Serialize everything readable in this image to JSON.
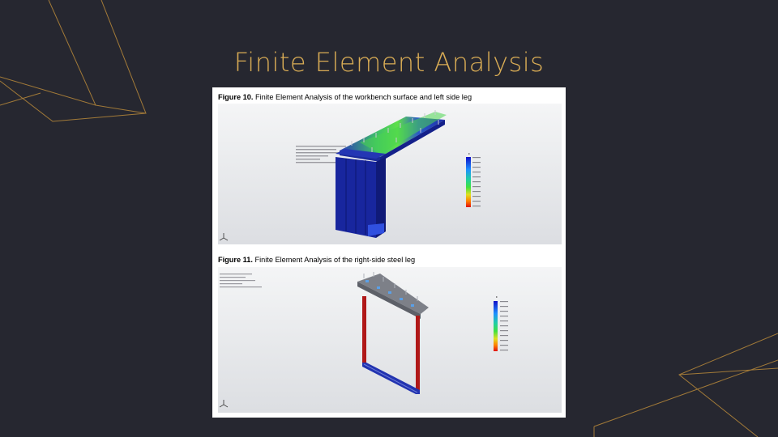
{
  "slide": {
    "title": "Finite Element Analysis"
  },
  "figures": [
    {
      "label": "Figure 10.",
      "caption": "Finite Element Analysis of the workbench surface and left side leg"
    },
    {
      "label": "Figure 11.",
      "caption": "Finite Element Analysis of the right-side steel leg"
    }
  ],
  "colors": {
    "background": "#262730",
    "accent": "#d9ac55",
    "panel": "#ffffff",
    "stress_low": "#1a1aa8",
    "stress_mid": "#3cd63c",
    "stress_high": "#e01010"
  },
  "icons": [
    "triad-axis-icon"
  ]
}
